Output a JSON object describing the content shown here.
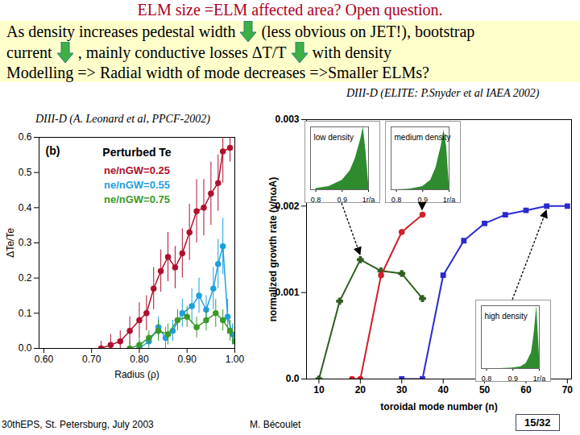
{
  "header": {
    "title": "ELM size =ELM affected area? Open question.",
    "lines": [
      [
        "As density increases  pedestal width",
        "(less obvious on JET!), bootstrap"
      ],
      [
        "current",
        ", mainly conductive losses ΔT/T",
        "with density"
      ],
      [
        "Modelling => Radial width of mode decreases =>Smaller ELMs?"
      ]
    ]
  },
  "chart_data": [
    {
      "type": "line",
      "subtitle": "DIII-D (A. Leonard et al, PPCF-2002)",
      "annotations": [
        "(b)",
        "Perturbed Te"
      ],
      "x_label": "Radius (ρ)",
      "y_label": "ΔTe/Te",
      "xlim": [
        0.59,
        1.0
      ],
      "xticks": [
        {
          "value": 0.6,
          "label": "0.60"
        },
        {
          "value": 0.7,
          "label": "0.70"
        },
        {
          "value": 0.8,
          "label": "0.80"
        },
        {
          "value": 0.9,
          "label": "0.90"
        },
        {
          "value": 1.0,
          "label": "1.00"
        }
      ],
      "ylim": [
        0,
        0.6
      ],
      "yticks": [
        {
          "value": 0,
          "label": "0.0"
        },
        0.1,
        0.2,
        0.3,
        0.4,
        0.5,
        0.6
      ],
      "legend": "upper center",
      "marker": "circle",
      "series": [
        {
          "name": "ne/nGW=0.25",
          "color": "#b0102e",
          "x": [
            0.72,
            0.74,
            0.76,
            0.78,
            0.8,
            0.815,
            0.83,
            0.845,
            0.86,
            0.875,
            0.89,
            0.905,
            0.92,
            0.935,
            0.95,
            0.965,
            0.975,
            0.99
          ],
          "values": [
            0.0,
            0.01,
            0.02,
            0.05,
            0.08,
            0.1,
            0.17,
            0.22,
            0.26,
            0.23,
            0.27,
            0.33,
            0.39,
            0.4,
            0.44,
            0.47,
            0.56,
            0.57
          ],
          "errors": [
            0.02,
            0.03,
            0.03,
            0.04,
            0.05,
            0.05,
            0.06,
            0.06,
            0.07,
            0.06,
            0.07,
            0.08,
            0.09,
            0.08,
            0.09,
            0.08,
            0.09,
            0.04
          ]
        },
        {
          "name": "ne/nGW=0.55",
          "color": "#1e9fe0",
          "x": [
            0.8,
            0.82,
            0.84,
            0.855,
            0.87,
            0.89,
            0.91,
            0.925,
            0.94,
            0.955,
            0.965,
            0.975,
            0.985,
            0.995
          ],
          "values": [
            0.0,
            0.02,
            0.06,
            0.03,
            0.05,
            0.1,
            0.12,
            0.15,
            0.11,
            0.17,
            0.24,
            0.29,
            0.09,
            0.04
          ],
          "errors": [
            0.02,
            0.02,
            0.03,
            0.03,
            0.03,
            0.04,
            0.05,
            0.05,
            0.04,
            0.06,
            0.07,
            0.08,
            0.05,
            0.03
          ]
        },
        {
          "name": "ne/nGW=0.75",
          "color": "#3a9a2a",
          "x": [
            0.78,
            0.8,
            0.82,
            0.84,
            0.86,
            0.88,
            0.9,
            0.92,
            0.94,
            0.96,
            0.975,
            0.99,
            1.0
          ],
          "values": [
            0.0,
            0.01,
            0.03,
            0.05,
            0.04,
            0.08,
            0.09,
            0.06,
            0.08,
            0.1,
            0.08,
            0.05,
            0.02
          ],
          "errors": [
            0.02,
            0.02,
            0.02,
            0.03,
            0.03,
            0.03,
            0.03,
            0.03,
            0.03,
            0.04,
            0.03,
            0.03,
            0.02
          ]
        }
      ]
    },
    {
      "type": "line",
      "subtitle": "DIII-D (ELITE: P.Snyder et al IAEA 2002)",
      "x_label": "toroidal mode number (n)",
      "y_label": "normalized growth rate (γ/nωA)",
      "xlim": [
        7,
        71
      ],
      "xticks": [
        10,
        20,
        30,
        40,
        50,
        60,
        70
      ],
      "ylim": [
        0,
        0.003
      ],
      "yticks": [
        {
          "value": 0,
          "label": "0.0"
        },
        0.001,
        0.002,
        0.003
      ],
      "inset_xlim": [
        0.78,
        1.0
      ],
      "inset_xticks": [
        0.8,
        0.9,
        {
          "value": 1,
          "label": "1r/a"
        }
      ],
      "inset_ylim": [
        0,
        1
      ],
      "series": [
        {
          "name": "low density",
          "color": "#2f5e1e",
          "marker": "cross",
          "x": [
            10,
            15,
            20,
            25,
            30,
            35
          ],
          "values": [
            0,
            0.0009,
            0.00138,
            0.00125,
            0.00122,
            0.00093
          ],
          "profile": {
            "x": [
              0.8,
              0.85,
              0.9,
              0.93,
              0.95,
              0.97,
              0.98,
              0.99,
              1.0
            ],
            "values": [
              0.02,
              0.05,
              0.15,
              0.3,
              0.5,
              0.8,
              1.0,
              0.6,
              0.1
            ]
          }
        },
        {
          "name": "medium density",
          "color": "#d0202a",
          "marker": "circle",
          "x": [
            18,
            20,
            25,
            30,
            35
          ],
          "values": [
            0,
            0,
            0.0012,
            0.0017,
            0.0019
          ],
          "profile": {
            "x": [
              0.8,
              0.85,
              0.9,
              0.93,
              0.95,
              0.97,
              0.98,
              0.99,
              1.0
            ],
            "values": [
              0,
              0.01,
              0.05,
              0.15,
              0.35,
              0.7,
              0.95,
              0.7,
              0.1
            ]
          }
        },
        {
          "name": "high density",
          "color": "#2a2ad0",
          "marker": "square",
          "x": [
            30,
            35,
            40,
            45,
            50,
            55,
            60,
            65,
            70
          ],
          "values": [
            0,
            0,
            0.0012,
            0.0016,
            0.0018,
            0.0019,
            0.00195,
            0.002,
            0.002
          ],
          "profile": {
            "x": [
              0.8,
              0.85,
              0.9,
              0.93,
              0.95,
              0.97,
              0.98,
              0.99,
              1.0
            ],
            "values": [
              0,
              0,
              0.01,
              0.03,
              0.08,
              0.25,
              0.55,
              1.0,
              0.2
            ]
          }
        }
      ]
    }
  ],
  "footer": [
    "30thEPS, St. Petersburg, July 2003",
    "M. Bécoulet",
    "15/32"
  ]
}
